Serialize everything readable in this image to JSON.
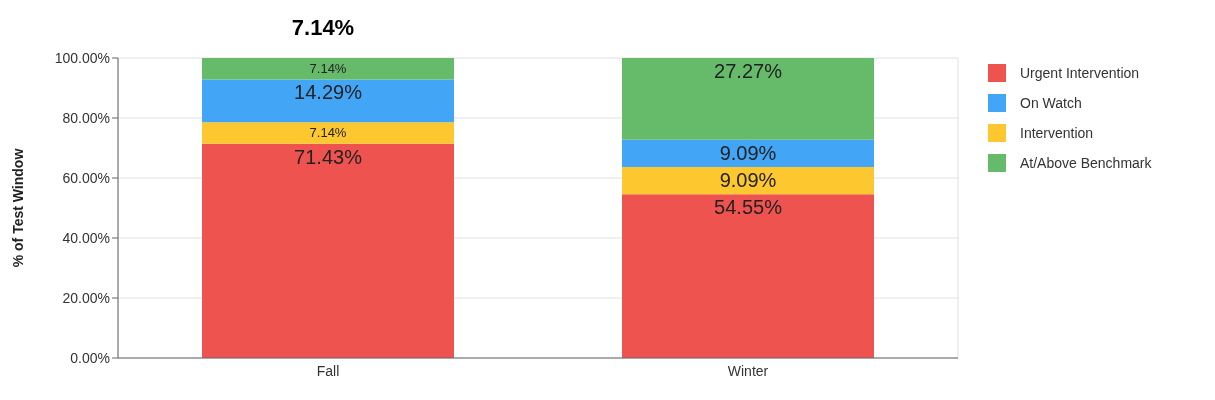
{
  "chart_data": {
    "type": "bar",
    "stacked": true,
    "title": "7.14%",
    "ylabel": "% of Test Window",
    "categories": [
      "Fall",
      "Winter"
    ],
    "series": [
      {
        "name": "Urgent Intervention",
        "color": "#ef5350",
        "values": [
          71.43,
          54.55
        ],
        "value_labels": [
          "71.43%",
          "54.55%"
        ]
      },
      {
        "name": "Intervention",
        "color": "#fdc82f",
        "values": [
          7.14,
          9.09
        ],
        "value_labels": [
          "7.14%",
          "9.09%"
        ]
      },
      {
        "name": "On Watch",
        "color": "#42a5f5",
        "values": [
          14.29,
          9.09
        ],
        "value_labels": [
          "14.29%",
          "9.09%"
        ]
      },
      {
        "name": "At/Above Benchmark",
        "color": "#66bb6a",
        "values": [
          7.14,
          27.27
        ],
        "value_labels": [
          "7.14%",
          "27.27%"
        ]
      }
    ],
    "ylim": [
      0,
      100
    ],
    "yticks": [
      {
        "value": 0,
        "label": "0.00%"
      },
      {
        "value": 20,
        "label": "20.00%"
      },
      {
        "value": 40,
        "label": "40.00%"
      },
      {
        "value": 60,
        "label": "60.00%"
      },
      {
        "value": 80,
        "label": "80.00%"
      },
      {
        "value": 100,
        "label": "100.00%"
      }
    ],
    "grid": true,
    "legend": "right"
  }
}
